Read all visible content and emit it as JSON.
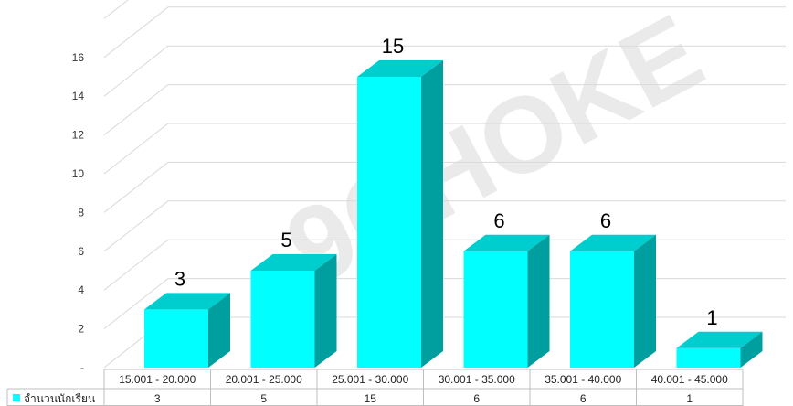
{
  "watermark": "9CHOKE",
  "chart_data": {
    "type": "bar",
    "categories": [
      "15.001 - 20.000",
      "20.001 - 25.000",
      "25.001 - 30.000",
      "30.001 - 35.000",
      "35.001 - 40.000",
      "40.001 - 45.000"
    ],
    "series": [
      {
        "name": "จำนวนนักเรียน",
        "values": [
          3,
          5,
          15,
          6,
          6,
          1
        ],
        "color": "#00FFFF"
      }
    ],
    "yticks": [
      "-",
      "2",
      "4",
      "6",
      "8",
      "10",
      "12",
      "14",
      "16"
    ],
    "ylim": [
      0,
      16
    ],
    "grid": true,
    "legend": "data-table",
    "colors": {
      "front": "#00FFFF",
      "top": "#00CDCD",
      "side": "#009F9F",
      "grid": "#d9d9d9"
    }
  }
}
